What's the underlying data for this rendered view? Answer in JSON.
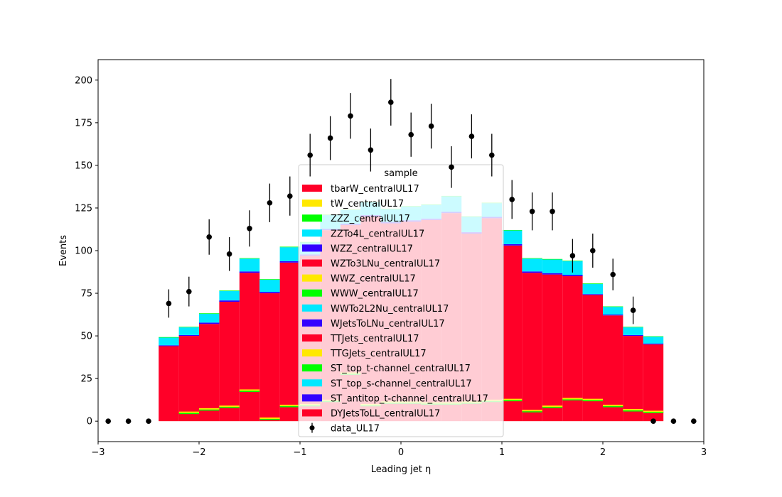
{
  "chart_data": {
    "type": "bar",
    "stacked": true,
    "histtype": "step-filled histogram",
    "xlabel": "Leading jet  η",
    "ylabel": "Events",
    "xlim": [
      -3,
      3
    ],
    "ylim": [
      -12,
      212
    ],
    "xticks": [
      "−3",
      "−2",
      "−1",
      "0",
      "1",
      "2",
      "3"
    ],
    "xtick_values": [
      -3,
      -2,
      -1,
      0,
      1,
      2,
      3
    ],
    "yticks": [
      "0",
      "25",
      "50",
      "75",
      "100",
      "125",
      "150",
      "175",
      "200"
    ],
    "ytick_values": [
      0,
      25,
      50,
      75,
      100,
      125,
      150,
      175,
      200
    ],
    "bin_edges": [
      -3.0,
      -2.8,
      -2.6,
      -2.4,
      -2.2,
      -2.0,
      -1.8,
      -1.6,
      -1.4,
      -1.2,
      -1.0,
      -0.8,
      -0.6,
      -0.4,
      -0.2,
      0.0,
      0.2,
      0.4,
      0.6,
      0.8,
      1.0,
      1.2,
      1.4,
      1.6,
      1.8,
      2.0,
      2.2,
      2.4,
      2.6,
      2.8,
      3.0
    ],
    "legend": {
      "title": "sample",
      "placement": "center",
      "entries": [
        {
          "label": "tbarW_centralUL17",
          "color": "#ff0028"
        },
        {
          "label": "tW_centralUL17",
          "color": "#ffe800"
        },
        {
          "label": "ZZZ_centralUL17",
          "color": "#00ff00"
        },
        {
          "label": "ZZTo4L_centralUL17",
          "color": "#00e8ff"
        },
        {
          "label": "WZZ_centralUL17",
          "color": "#3300ff"
        },
        {
          "label": "WZTo3LNu_centralUL17",
          "color": "#ff0028"
        },
        {
          "label": "WWZ_centralUL17",
          "color": "#ffe800"
        },
        {
          "label": "WWW_centralUL17",
          "color": "#00ff00"
        },
        {
          "label": "WWTo2L2Nu_centralUL17",
          "color": "#00e8ff"
        },
        {
          "label": "WJetsToLNu_centralUL17",
          "color": "#3300ff"
        },
        {
          "label": "TTJets_centralUL17",
          "color": "#ff0028"
        },
        {
          "label": "TTGJets_centralUL17",
          "color": "#ffe800"
        },
        {
          "label": "ST_top_t-channel_centralUL17",
          "color": "#00ff00"
        },
        {
          "label": "ST_top_s-channel_centralUL17",
          "color": "#00e8ff"
        },
        {
          "label": "ST_antitop_t-channel_centralUL17",
          "color": "#3300ff"
        },
        {
          "label": "DYJetsToLL_centralUL17",
          "color": "#ff0028"
        },
        {
          "label": "data_UL17",
          "color": "#000000",
          "marker": "errorbar"
        }
      ]
    },
    "series": [
      {
        "name": "DYJetsToLL_centralUL17",
        "color": "#ff0028",
        "values": [
          0,
          0,
          0,
          44,
          50,
          57,
          70,
          87,
          75,
          93,
          97,
          112,
          115,
          120,
          116,
          117,
          118,
          122,
          110,
          119,
          103,
          87,
          86,
          85,
          74,
          62,
          50,
          45,
          0,
          0
        ]
      },
      {
        "name": "ST_antitop_t-channel_centralUL17",
        "color": "#3300ff",
        "values": [
          0,
          0,
          0,
          0.5,
          0.5,
          0.8,
          0.8,
          0.8,
          0.8,
          0.8,
          0.8,
          0.8,
          0.8,
          0.8,
          0.8,
          0.8,
          0.8,
          0.8,
          0.8,
          0.8,
          0.8,
          0.8,
          0.8,
          0.8,
          0.5,
          0.5,
          0.5,
          0.5,
          0,
          0
        ]
      },
      {
        "name": "ST_top_s-channel_centralUL17",
        "color": "#00e8ff",
        "values": [
          0,
          0,
          0,
          4.5,
          4.5,
          5.2,
          5.5,
          7.5,
          7.2,
          8.2,
          7,
          8,
          8,
          7.5,
          7.5,
          8,
          8,
          9,
          9,
          8,
          8,
          7.5,
          8,
          8,
          6,
          4.5,
          4.5,
          4,
          0,
          0
        ]
      },
      {
        "name": "ST_top_t-channel_centralUL17",
        "color": "#00ff00",
        "values": [
          0,
          0,
          0,
          0.3,
          0.3,
          0.3,
          0.3,
          0.3,
          0.3,
          0.3,
          0.3,
          0.3,
          0.3,
          0.3,
          0.3,
          0.3,
          0.3,
          0.3,
          0.3,
          0.3,
          0.3,
          0.3,
          0.3,
          0.3,
          0.3,
          0.3,
          0.3,
          0.3,
          0,
          0
        ]
      }
    ],
    "small_components": {
      "description": "TTGJets / ST_top_t-channel levels drawn near zero",
      "values": [
        0,
        0,
        0,
        0,
        5,
        7,
        8.5,
        18,
        1.5,
        9,
        9.5,
        12,
        28,
        9.5,
        11,
        11,
        10.5,
        10.5,
        11,
        12,
        12.5,
        6,
        8.5,
        13,
        12.5,
        9,
        6.5,
        5.5,
        0,
        0
      ]
    },
    "data": {
      "name": "data_UL17",
      "x": [
        -2.9,
        -2.7,
        -2.5,
        -2.3,
        -2.1,
        -1.9,
        -1.7,
        -1.5,
        -1.3,
        -1.1,
        -0.9,
        -0.7,
        -0.5,
        -0.3,
        -0.1,
        0.1,
        0.3,
        0.5,
        0.7,
        0.9,
        1.1,
        1.3,
        1.5,
        1.7,
        1.9,
        2.1,
        2.3,
        2.5,
        2.7,
        2.9
      ],
      "y": [
        0,
        0,
        0,
        69,
        76,
        108,
        98,
        113,
        128,
        132,
        156,
        166,
        179,
        159,
        187,
        168,
        173,
        149,
        167,
        156,
        130,
        123,
        123,
        97,
        100,
        86,
        65,
        0,
        0,
        0
      ]
    }
  }
}
